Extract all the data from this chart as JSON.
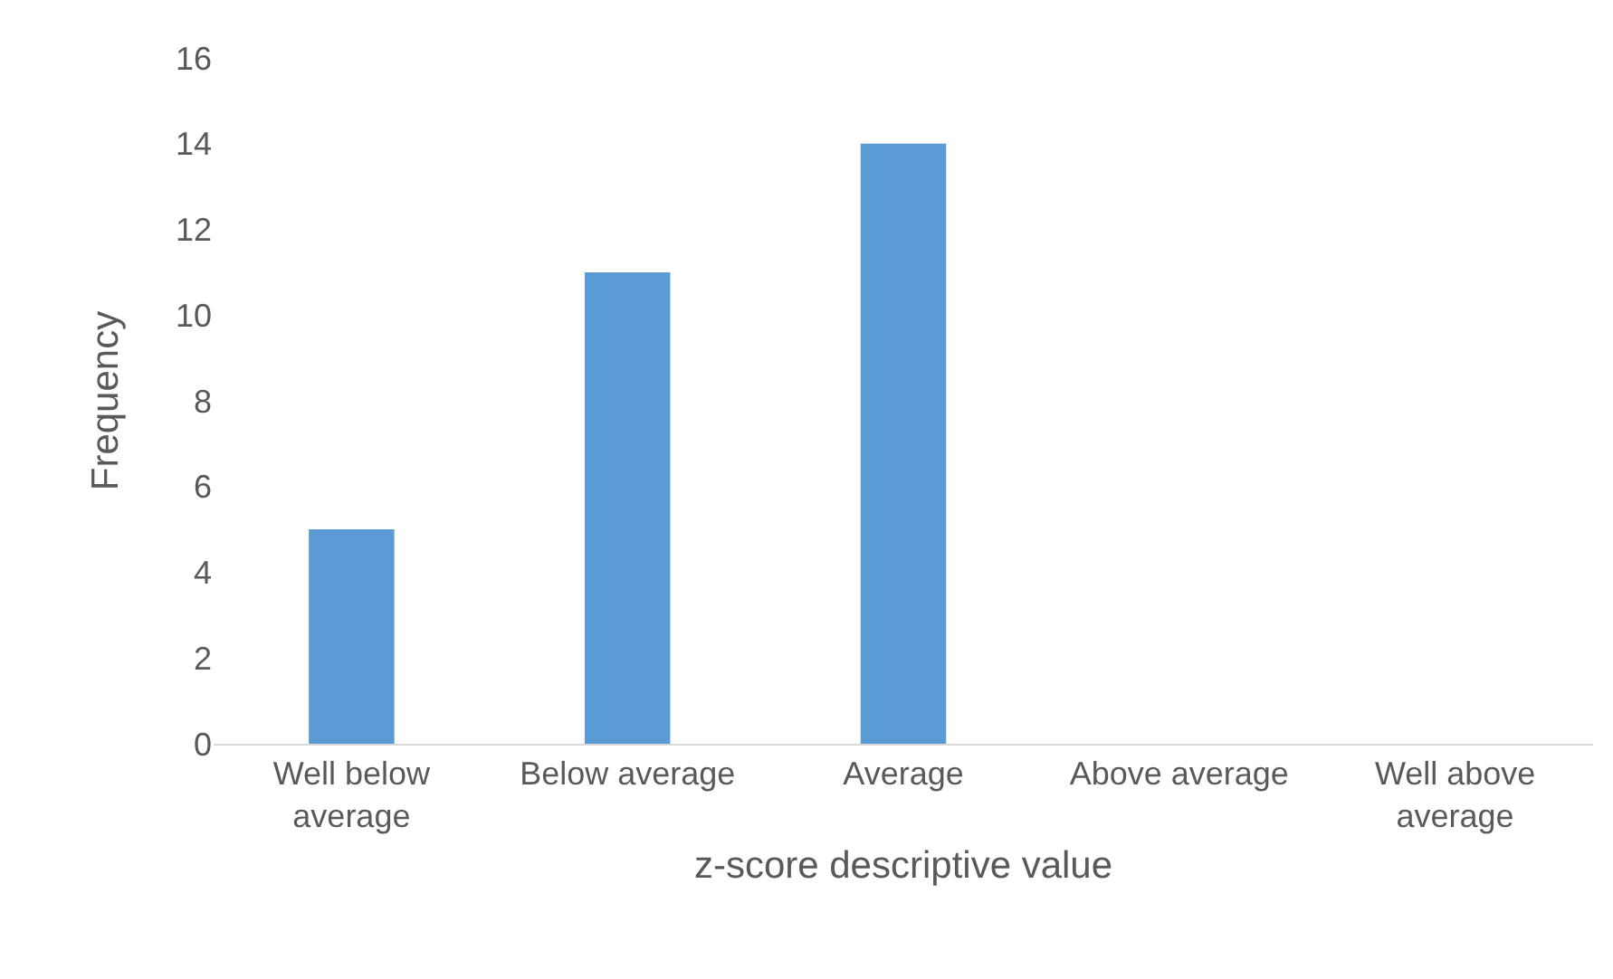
{
  "chart_data": {
    "type": "bar",
    "categories": [
      "Well below average",
      "Below average",
      "Average",
      "Above average",
      "Well above average"
    ],
    "values": [
      5,
      11,
      14,
      0,
      0
    ],
    "color": "#5b9bd5",
    "xlabel": "z-score descriptive value",
    "ylabel": "Frequency",
    "ylim": [
      0,
      16
    ],
    "yticks": [
      0,
      2,
      4,
      6,
      8,
      10,
      12,
      14,
      16
    ],
    "grid": false,
    "legend": false
  }
}
